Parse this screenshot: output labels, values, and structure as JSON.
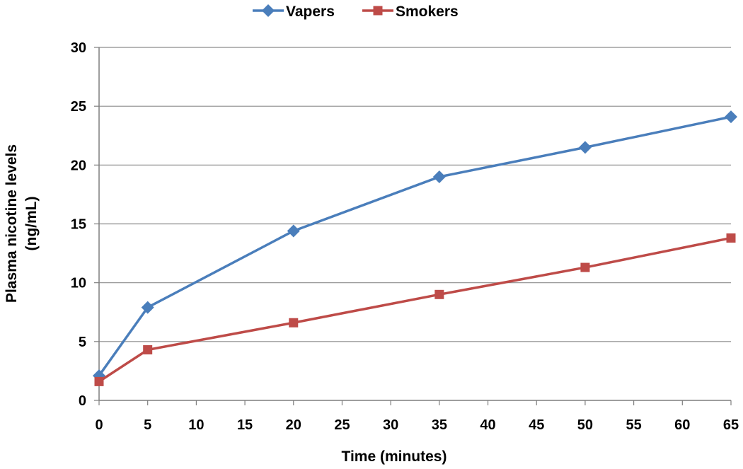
{
  "chart_data": {
    "type": "line",
    "xlabel": "Time (minutes)",
    "ylabel_lines": [
      "Plasma nicotine levels",
      "(ng/mL)"
    ],
    "xlim": [
      0,
      65
    ],
    "ylim": [
      0,
      30
    ],
    "x_ticks": [
      0,
      5,
      10,
      15,
      20,
      25,
      30,
      35,
      40,
      45,
      50,
      55,
      60,
      65
    ],
    "y_ticks": [
      0,
      5,
      10,
      15,
      20,
      25,
      30
    ],
    "grid": "horizontal",
    "legend_position": "top-center",
    "x": [
      0,
      5,
      20,
      35,
      50,
      65
    ],
    "series": [
      {
        "name": "Vapers",
        "values": [
          2.1,
          7.9,
          14.4,
          19.0,
          21.5,
          24.1
        ],
        "color": "#4a7ebb",
        "marker": "diamond"
      },
      {
        "name": "Smokers",
        "values": [
          1.6,
          4.3,
          6.6,
          9.0,
          11.3,
          13.8
        ],
        "color": "#be4b48",
        "marker": "square"
      }
    ]
  }
}
